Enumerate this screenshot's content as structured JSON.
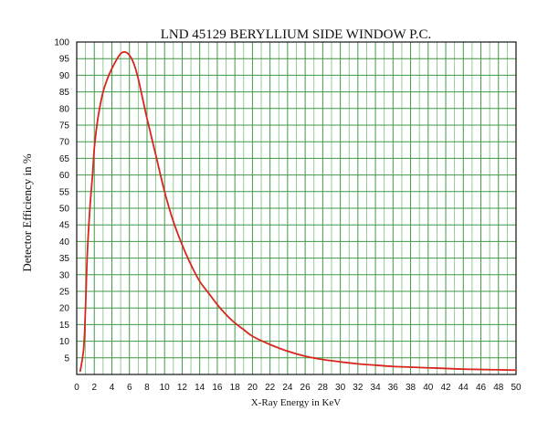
{
  "chart_data": {
    "type": "line",
    "title": "LND 45129 BERYLLIUM SIDE WINDOW P.C.",
    "xlabel": "X-Ray Energy in KeV",
    "ylabel": "Detector Efficiency in %",
    "xlim": [
      0,
      50
    ],
    "ylim": [
      0,
      100
    ],
    "grid": true,
    "series_color": "#d8261f",
    "grid_color": "#3f9a45",
    "x_ticks": [
      0,
      2,
      4,
      6,
      8,
      10,
      12,
      14,
      16,
      18,
      20,
      22,
      24,
      26,
      28,
      30,
      32,
      34,
      36,
      38,
      40,
      42,
      44,
      46,
      48,
      50
    ],
    "y_ticks": [
      5,
      10,
      15,
      20,
      25,
      30,
      35,
      40,
      45,
      50,
      55,
      60,
      65,
      70,
      75,
      80,
      85,
      90,
      95,
      100
    ],
    "series": [
      {
        "x": [
          0.4,
          0.8,
          1.0,
          1.2,
          1.5,
          1.8,
          2.0,
          2.3,
          2.6,
          3.0,
          3.5,
          4.0,
          4.5,
          5.0,
          5.5,
          6.0,
          6.5,
          7.0,
          7.5,
          8.0,
          9.0,
          10.0,
          11.0,
          12.0,
          13.0,
          14.0,
          15.0,
          16.0,
          17.0,
          18.0,
          19.0,
          20.0,
          22.0,
          24.0,
          26.0,
          28.0,
          30.0,
          32.0,
          34.0,
          36.0,
          38.0,
          40.0,
          42.0,
          44.0,
          46.0,
          48.0,
          50.0
        ],
        "y": [
          1,
          8,
          20,
          36,
          50,
          60,
          68,
          75,
          80,
          85,
          89,
          92,
          94.5,
          96.5,
          97,
          96,
          93.5,
          89,
          83,
          77,
          66,
          55,
          46,
          39,
          33,
          28,
          24.5,
          21,
          18,
          15.5,
          13.5,
          11.5,
          9,
          7,
          5.5,
          4.5,
          3.8,
          3.2,
          2.8,
          2.4,
          2.2,
          2.0,
          1.8,
          1.6,
          1.5,
          1.4,
          1.3
        ]
      }
    ]
  }
}
